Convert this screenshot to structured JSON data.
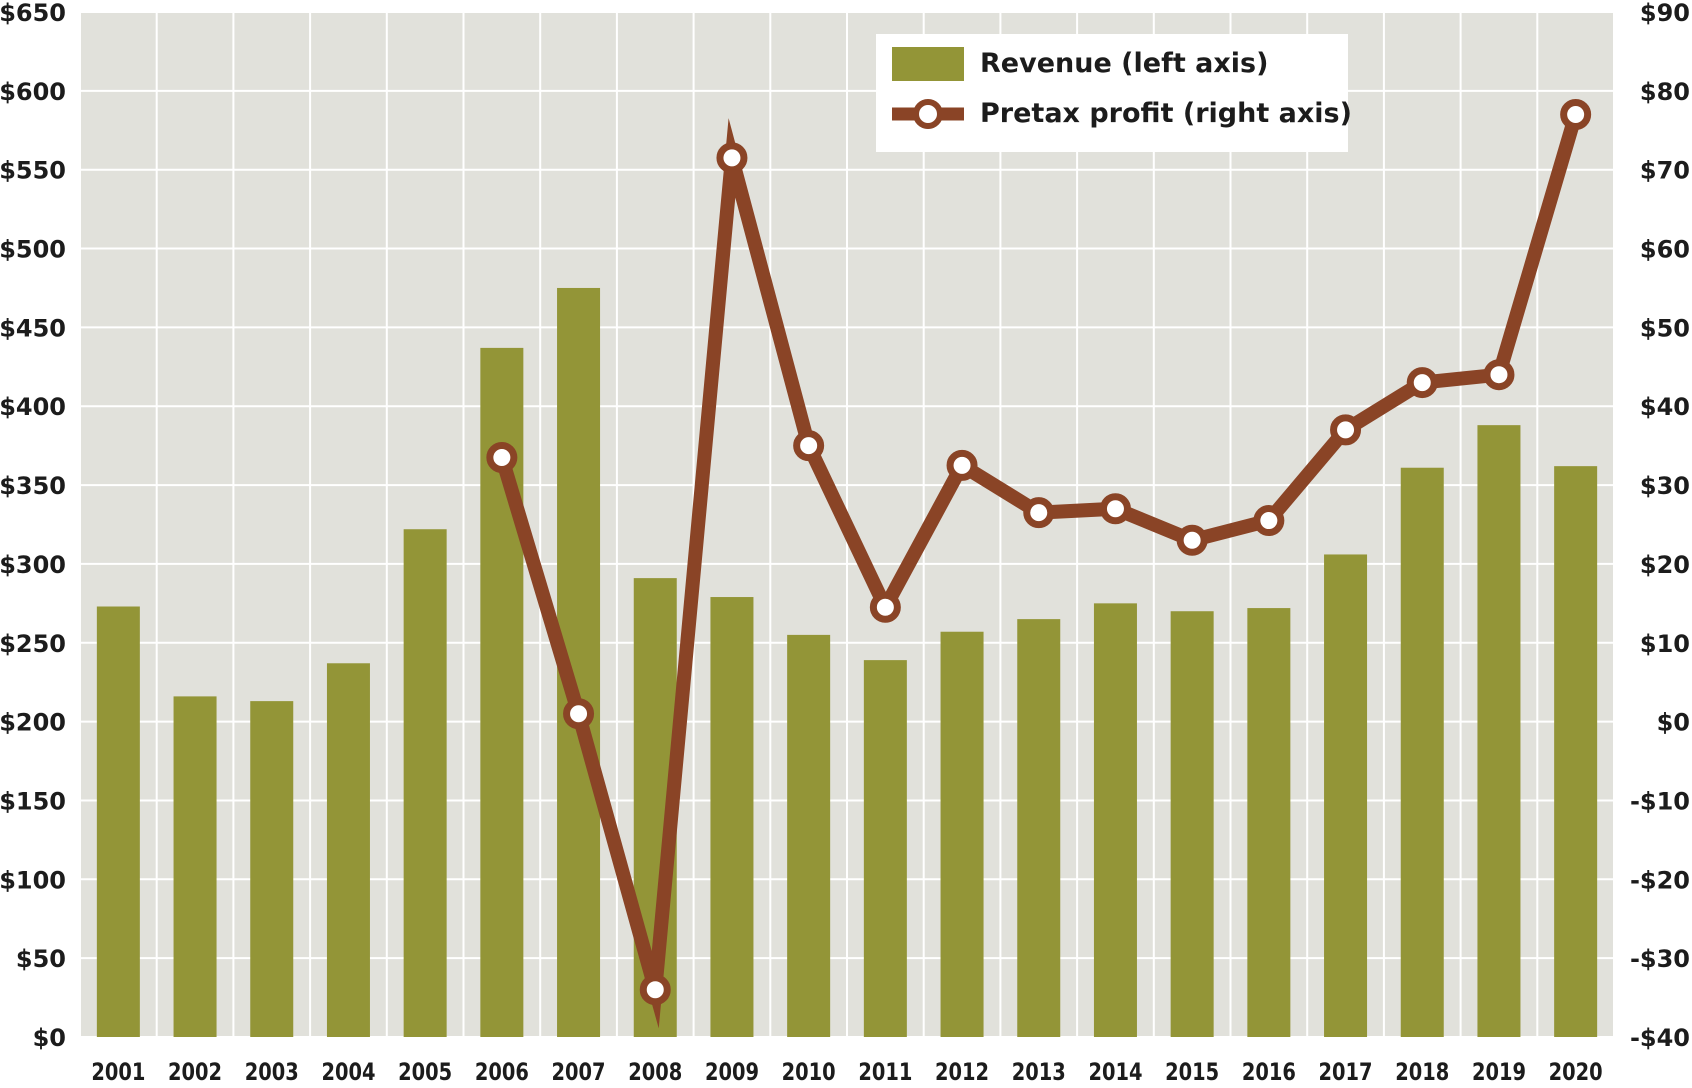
{
  "chart_data": {
    "type": "bar",
    "categories": [
      "2001",
      "2002",
      "2003",
      "2004",
      "2005",
      "2006",
      "2007",
      "2008",
      "2009",
      "2010",
      "2011",
      "2012",
      "2013",
      "2014",
      "2015",
      "2016",
      "2017",
      "2018",
      "2019",
      "2020"
    ],
    "series": [
      {
        "name": "Revenue (left axis)",
        "type": "bar",
        "axis": "left",
        "color": "#939537",
        "values": [
          273,
          216,
          213,
          237,
          322,
          437,
          475,
          291,
          279,
          255,
          239,
          257,
          265,
          275,
          270,
          272,
          306,
          361,
          388,
          362
        ]
      },
      {
        "name": "Pretax profit (right axis)",
        "type": "line",
        "axis": "right",
        "color": "#8a4426",
        "values": [
          null,
          null,
          null,
          null,
          null,
          33.5,
          1,
          -34,
          71.5,
          35,
          14.5,
          32.5,
          26.5,
          27,
          23,
          25.5,
          37,
          43,
          44,
          77
        ]
      }
    ],
    "left_axis": {
      "range": [
        0,
        650
      ],
      "ticks": [
        0,
        50,
        100,
        150,
        200,
        250,
        300,
        350,
        400,
        450,
        500,
        550,
        600,
        650
      ],
      "tick_labels": [
        "$0",
        "$50",
        "$100",
        "$150",
        "$200",
        "$250",
        "$300",
        "$350",
        "$400",
        "$450",
        "$500",
        "$550",
        "$600",
        "$650"
      ]
    },
    "right_axis": {
      "range": [
        -40,
        90
      ],
      "ticks": [
        -40,
        -30,
        -20,
        -10,
        0,
        10,
        20,
        30,
        40,
        50,
        60,
        70,
        80,
        90
      ],
      "tick_labels": [
        "-$40",
        "-$30",
        "-$20",
        "-$10",
        "$0",
        "$10",
        "$20",
        "$30",
        "$40",
        "$50",
        "$60",
        "$70",
        "$80",
        "$90"
      ]
    },
    "legend": {
      "position": "top-right",
      "entries": [
        "Revenue (left axis)",
        "Pretax profit (right axis)"
      ]
    },
    "grid": true,
    "colors": {
      "background": "#e1e1db",
      "grid": "#ffffff",
      "bar": "#939537",
      "line": "#8a4426",
      "marker_fill": "#ffffff",
      "text": "#1c1c1c"
    }
  }
}
